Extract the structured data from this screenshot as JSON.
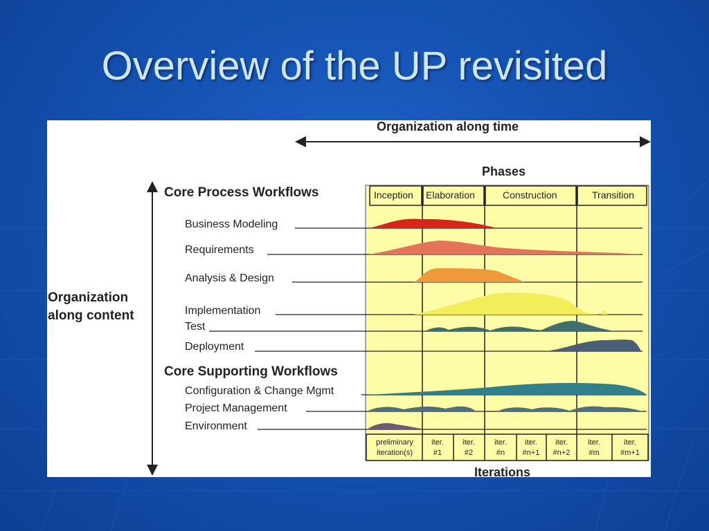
{
  "slide": {
    "title": "Overview of the UP revisited"
  },
  "diagram": {
    "time_axis_label": "Organization along time",
    "content_axis_label_line1": "Organization",
    "content_axis_label_line2": "along content",
    "phases_title": "Phases",
    "phases": [
      "Inception",
      "Elaboration",
      "Construction",
      "Transition"
    ],
    "core_process_heading": "Core Process Workflows",
    "core_process_workflows": [
      "Business Modeling",
      "Requirements",
      "Analysis & Design",
      "Implementation",
      "Test",
      "Deployment"
    ],
    "core_supporting_heading": "Core Supporting Workflows",
    "core_supporting_workflows": [
      "Configuration & Change Mgmt",
      "Project Management",
      "Environment"
    ],
    "iterations": [
      {
        "line1": "preliminary",
        "line2": "iteration(s)"
      },
      {
        "line1": "iter.",
        "line2": "#1"
      },
      {
        "line1": "iter.",
        "line2": "#2"
      },
      {
        "line1": "iter.",
        "line2": "#n"
      },
      {
        "line1": "iter.",
        "line2": "#n+1"
      },
      {
        "line1": "iter.",
        "line2": "#n+2"
      },
      {
        "line1": "iter.",
        "line2": "#m"
      },
      {
        "line1": "iter.",
        "line2": "#m+1"
      }
    ],
    "iterations_label": "Iterations",
    "colors": {
      "business_modeling": "#d9231b",
      "requirements": "#e4735a",
      "analysis_design": "#ee9a3a",
      "implementation": "#f2ee5a",
      "test": "#3f6e6e",
      "deployment": "#4a5e78",
      "config_change": "#2f7f8c",
      "project_mgmt": "#4f6e7e",
      "environment": "#6b5a78",
      "grid_background": "#fffca8"
    }
  }
}
